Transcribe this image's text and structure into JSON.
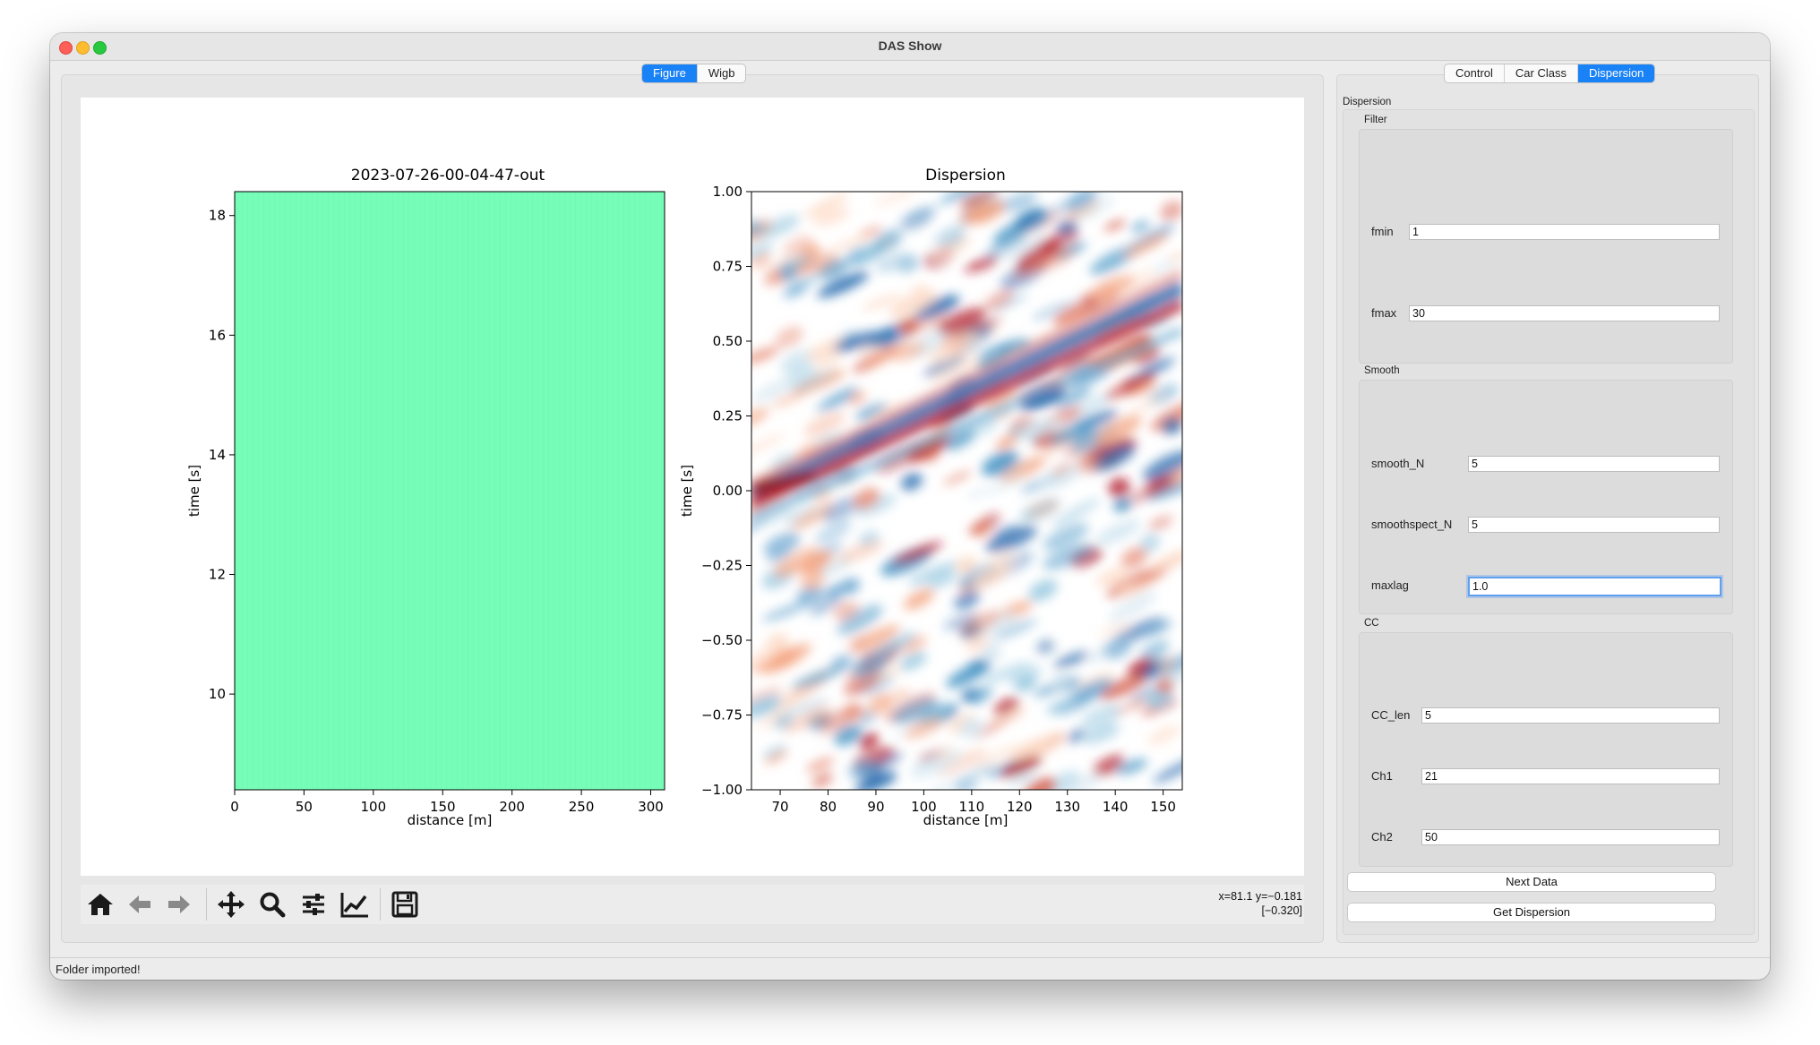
{
  "window": {
    "title": "DAS Show"
  },
  "left_tabs": [
    "Figure",
    "Wigb"
  ],
  "right_tabs": [
    "Control",
    "Car Class",
    "Dispersion"
  ],
  "dispersion_panel": {
    "label": "Dispersion",
    "filter": {
      "label": "Filter",
      "fmin_label": "fmin",
      "fmin": "1",
      "fmax_label": "fmax",
      "fmax": "30"
    },
    "smooth": {
      "label": "Smooth",
      "smooth_N_label": "smooth_N",
      "smooth_N": "5",
      "smoothspect_N_label": "smoothspect_N",
      "smoothspect_N": "5",
      "maxlag_label": "maxlag",
      "maxlag": "1.0"
    },
    "cc": {
      "label": "CC",
      "cc_len_label": "CC_len",
      "cc_len": "5",
      "ch1_label": "Ch1",
      "ch1": "21",
      "ch2_label": "Ch2",
      "ch2": "50"
    },
    "next_button": "Next Data",
    "get_button": "Get Dispersion"
  },
  "toolbar": {
    "icons": [
      "home-icon",
      "back-arrow-icon",
      "forward-arrow-icon",
      "pan-icon",
      "zoom-icon",
      "subplots-icon",
      "axes-edit-icon",
      "save-icon"
    ],
    "coords_line1": "x=81.1 y=−0.181",
    "coords_line2": "[−0.320]"
  },
  "status_text": "Folder imported!",
  "colors": {
    "accent": "#1a82f7",
    "heatmap_fill": "#76fdb8"
  },
  "chart_data": [
    {
      "type": "heatmap",
      "title": "2023-07-26-00-04-47-out",
      "xlabel": "distance [m]",
      "ylabel": "time [s]",
      "xlim": [
        0,
        310
      ],
      "ylim": [
        8.4,
        18.4
      ],
      "xticks": [
        0,
        50,
        100,
        150,
        200,
        250,
        300
      ],
      "yticks": [
        10,
        12,
        14,
        16,
        18
      ],
      "colormap": "near-uniform green"
    },
    {
      "type": "heatmap",
      "title": "Dispersion",
      "xlabel": "distance [m]",
      "ylabel": "time [s]",
      "xlim": [
        64,
        154
      ],
      "ylim": [
        -1.0,
        1.0
      ],
      "xticks": [
        70,
        80,
        90,
        100,
        110,
        120,
        130,
        140,
        150
      ],
      "ytick_labels": [
        "−1.00",
        "−0.75",
        "−0.50",
        "−0.25",
        "0.00",
        "0.25",
        "0.50",
        "0.75",
        "1.00"
      ],
      "yticks": [
        -1.0,
        -0.75,
        -0.5,
        -0.25,
        0.0,
        0.25,
        0.5,
        0.75,
        1.0
      ],
      "colormap": "RdBu",
      "features": "diagonal red/blue stripes rising from (64, 0.0) toward (154, 0.75)"
    }
  ]
}
